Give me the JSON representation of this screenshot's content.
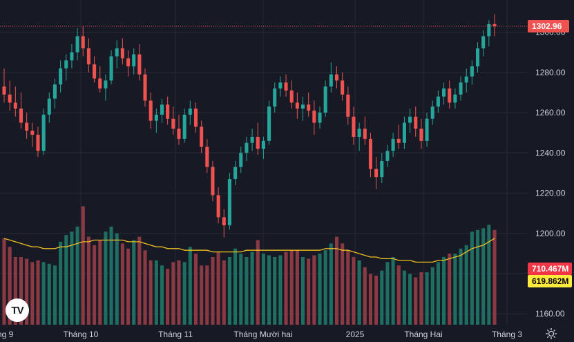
{
  "chart_data": {
    "type": "candlestick",
    "title": "",
    "price_axis": {
      "ticks": [
        "1160.00",
        "1180.00",
        "1200.00",
        "1220.00",
        "1240.00",
        "1260.00",
        "1280.00",
        "1300.00"
      ],
      "range": [
        1146,
        1316
      ]
    },
    "time_axis": {
      "labels": [
        "ng 9",
        "Tháng 10",
        "Tháng 11",
        "Tháng Mười hai",
        "2025",
        "Tháng Hai",
        "Tháng 3"
      ]
    },
    "last_price_label": "1302.96",
    "last_price": 1302.96,
    "volume_label": "710.467M",
    "volume_ma_label": "619.862M",
    "volume_ma_period_note": "MA",
    "colors": {
      "up": "#26a69a",
      "down": "#ef5350",
      "up_volume": "#1f6e62",
      "down_volume": "#8b3a44",
      "volume_ma": "#f0c020",
      "background": "#171a25",
      "grid": "#262b38",
      "text": "#d1d4dc",
      "volume_badge": "#f23645",
      "ma_badge": "#ffeb3b"
    },
    "candles": [
      [
        1273,
        1282,
        1265,
        1269
      ],
      [
        1269,
        1276,
        1261,
        1265
      ],
      [
        1265,
        1273,
        1258,
        1262
      ],
      [
        1262,
        1270,
        1252,
        1255
      ],
      [
        1255,
        1260,
        1247,
        1251
      ],
      [
        1251,
        1255,
        1243,
        1249
      ],
      [
        1249,
        1253,
        1238,
        1241
      ],
      [
        1241,
        1262,
        1239,
        1259
      ],
      [
        1259,
        1270,
        1255,
        1267
      ],
      [
        1267,
        1277,
        1262,
        1274
      ],
      [
        1274,
        1286,
        1270,
        1282
      ],
      [
        1282,
        1289,
        1276,
        1286
      ],
      [
        1286,
        1294,
        1282,
        1290
      ],
      [
        1290,
        1302,
        1286,
        1298
      ],
      [
        1298,
        1303,
        1288,
        1292
      ],
      [
        1292,
        1297,
        1280,
        1284
      ],
      [
        1284,
        1288,
        1275,
        1277
      ],
      [
        1277,
        1283,
        1270,
        1272
      ],
      [
        1272,
        1279,
        1266,
        1276
      ],
      [
        1276,
        1291,
        1274,
        1288
      ],
      [
        1288,
        1296,
        1282,
        1292
      ],
      [
        1292,
        1297,
        1284,
        1287
      ],
      [
        1287,
        1291,
        1278,
        1283
      ],
      [
        1283,
        1292,
        1279,
        1289
      ],
      [
        1289,
        1294,
        1276,
        1279
      ],
      [
        1279,
        1282,
        1263,
        1266
      ],
      [
        1266,
        1270,
        1252,
        1256
      ],
      [
        1256,
        1262,
        1250,
        1259
      ],
      [
        1259,
        1267,
        1255,
        1264
      ],
      [
        1264,
        1268,
        1254,
        1257
      ],
      [
        1257,
        1263,
        1249,
        1252
      ],
      [
        1252,
        1259,
        1244,
        1247
      ],
      [
        1247,
        1262,
        1245,
        1259
      ],
      [
        1259,
        1266,
        1254,
        1262
      ],
      [
        1262,
        1265,
        1250,
        1253
      ],
      [
        1253,
        1256,
        1240,
        1243
      ],
      [
        1243,
        1247,
        1230,
        1233
      ],
      [
        1233,
        1236,
        1216,
        1219
      ],
      [
        1219,
        1223,
        1205,
        1208
      ],
      [
        1208,
        1212,
        1198,
        1204
      ],
      [
        1204,
        1230,
        1202,
        1227
      ],
      [
        1227,
        1236,
        1224,
        1233
      ],
      [
        1233,
        1243,
        1230,
        1240
      ],
      [
        1240,
        1248,
        1236,
        1245
      ],
      [
        1245,
        1252,
        1241,
        1248
      ],
      [
        1248,
        1255,
        1239,
        1242
      ],
      [
        1242,
        1248,
        1237,
        1246
      ],
      [
        1246,
        1266,
        1244,
        1263
      ],
      [
        1263,
        1275,
        1260,
        1272
      ],
      [
        1272,
        1278,
        1268,
        1275
      ],
      [
        1275,
        1279,
        1268,
        1271
      ],
      [
        1271,
        1276,
        1262,
        1265
      ],
      [
        1265,
        1270,
        1257,
        1262
      ],
      [
        1262,
        1268,
        1256,
        1264
      ],
      [
        1264,
        1270,
        1258,
        1261
      ],
      [
        1261,
        1266,
        1249,
        1255
      ],
      [
        1255,
        1263,
        1252,
        1260
      ],
      [
        1260,
        1276,
        1258,
        1273
      ],
      [
        1273,
        1285,
        1270,
        1279
      ],
      [
        1279,
        1283,
        1272,
        1276
      ],
      [
        1276,
        1280,
        1266,
        1269
      ],
      [
        1269,
        1273,
        1254,
        1258
      ],
      [
        1258,
        1263,
        1244,
        1248
      ],
      [
        1248,
        1255,
        1241,
        1252
      ],
      [
        1252,
        1258,
        1244,
        1247
      ],
      [
        1247,
        1250,
        1228,
        1232
      ],
      [
        1232,
        1238,
        1222,
        1228
      ],
      [
        1228,
        1240,
        1225,
        1236
      ],
      [
        1236,
        1244,
        1233,
        1241
      ],
      [
        1241,
        1250,
        1238,
        1247
      ],
      [
        1247,
        1254,
        1242,
        1245
      ],
      [
        1245,
        1258,
        1242,
        1255
      ],
      [
        1255,
        1262,
        1250,
        1258
      ],
      [
        1258,
        1263,
        1248,
        1252
      ],
      [
        1252,
        1257,
        1242,
        1246
      ],
      [
        1246,
        1260,
        1243,
        1257
      ],
      [
        1257,
        1266,
        1254,
        1263
      ],
      [
        1263,
        1271,
        1260,
        1268
      ],
      [
        1268,
        1275,
        1264,
        1272
      ],
      [
        1272,
        1276,
        1262,
        1265
      ],
      [
        1265,
        1272,
        1262,
        1269
      ],
      [
        1269,
        1278,
        1266,
        1275
      ],
      [
        1275,
        1282,
        1270,
        1278
      ],
      [
        1278,
        1286,
        1274,
        1283
      ],
      [
        1283,
        1295,
        1280,
        1292
      ],
      [
        1292,
        1301,
        1288,
        1298
      ],
      [
        1298,
        1306,
        1293,
        1304
      ],
      [
        1304,
        1309,
        1298,
        1303
      ]
    ],
    "volumes": [
      171,
      166,
      160,
      160,
      159,
      157,
      158,
      157,
      156,
      155,
      169,
      173,
      175,
      178,
      190,
      172,
      167,
      170,
      175,
      178,
      174,
      168,
      165,
      170,
      172,
      164,
      158,
      158,
      155,
      153,
      157,
      158,
      157,
      166,
      162,
      155,
      155,
      160,
      163,
      158,
      160,
      165,
      162,
      160,
      163,
      170,
      162,
      161,
      160,
      161,
      163,
      164,
      164,
      160,
      159,
      161,
      162,
      164,
      168,
      172,
      168,
      164,
      160,
      158,
      154,
      150,
      149,
      152,
      157,
      160,
      155,
      152,
      150,
      148,
      151,
      151,
      154,
      157,
      160,
      162,
      162,
      165,
      167,
      175,
      176,
      177,
      179,
      176
    ],
    "volume_ma": [
      171,
      170,
      169,
      168,
      167,
      166,
      166,
      165,
      165,
      165,
      166,
      166,
      167,
      168,
      169,
      169,
      170,
      170,
      170,
      170,
      170,
      170,
      169,
      169,
      169,
      168,
      167,
      166,
      166,
      165,
      165,
      165,
      164,
      164,
      164,
      164,
      164,
      163,
      163,
      163,
      163,
      163,
      163,
      164,
      164,
      164,
      164,
      164,
      164,
      164,
      164,
      164,
      164,
      164,
      164,
      164,
      164,
      165,
      165,
      165,
      164,
      164,
      163,
      162,
      161,
      160,
      160,
      159,
      159,
      159,
      158,
      158,
      158,
      157,
      157,
      157,
      157,
      158,
      158,
      159,
      160,
      161,
      163,
      165,
      166,
      167,
      169,
      171
    ]
  }
}
